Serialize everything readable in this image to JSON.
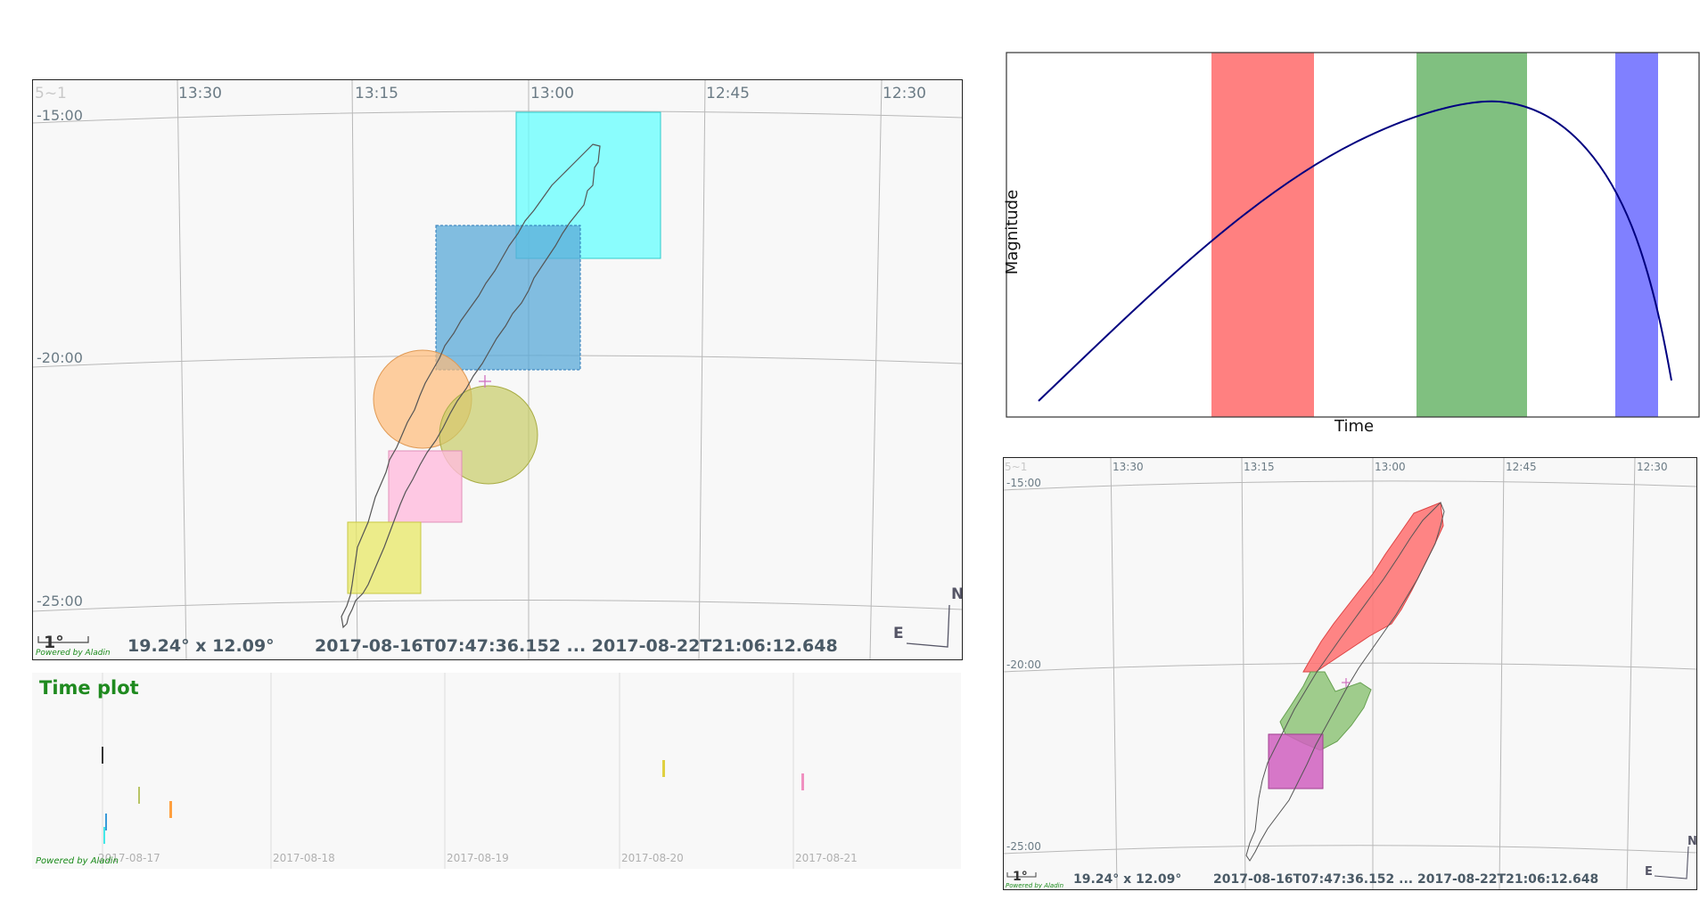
{
  "main_view": {
    "ra_ticks": [
      "5~1",
      "13:30",
      "13:15",
      "13:00",
      "12:45",
      "12:30"
    ],
    "dec_ticks": [
      "-15:00",
      "-20:00",
      "-25:00"
    ],
    "scale_label": "1°",
    "fov_text": "19.24° x 12.09°",
    "time_range": "2017-08-16T07:47:36.152 ... 2017-08-22T21:06:12.648",
    "compass_n": "N",
    "compass_e": "E",
    "powered_by": "Powered by Aladin",
    "footprints": [
      {
        "kind": "square",
        "color": "#66ffff"
      },
      {
        "kind": "square",
        "color": "#5aa9d8"
      },
      {
        "kind": "circle",
        "color": "#ffbb77"
      },
      {
        "kind": "circle",
        "color": "#c8cc66"
      },
      {
        "kind": "square",
        "color": "#ffbbdd"
      },
      {
        "kind": "square",
        "color": "#e8e866"
      }
    ]
  },
  "time_plot": {
    "title": "Time plot",
    "dates": [
      "2017-08-17",
      "2017-08-18",
      "2017-08-19",
      "2017-08-20",
      "2017-08-21"
    ],
    "powered_by": "Powered by Aladin",
    "events": [
      {
        "color": "#333333"
      },
      {
        "color": "#b8c466"
      },
      {
        "color": "#ffa040"
      },
      {
        "color": "#3a9ad8"
      },
      {
        "color": "#44e8e8"
      },
      {
        "color": "#e0d040"
      },
      {
        "color": "#f090c0"
      }
    ]
  },
  "light_curve": {
    "xlabel": "Time",
    "ylabel": "Magnitude",
    "curve_color": "#000080",
    "bands": [
      {
        "name": "red",
        "color": "#ff8080"
      },
      {
        "name": "green",
        "color": "#80c080"
      },
      {
        "name": "blue",
        "color": "#8080ff"
      }
    ]
  },
  "sub_view": {
    "ra_ticks": [
      "5~1",
      "13:30",
      "13:15",
      "13:00",
      "12:45",
      "12:30"
    ],
    "dec_ticks": [
      "-15:00",
      "-20:00",
      "-25:00"
    ],
    "scale_label": "1°",
    "fov_text": "19.24° x 12.09°",
    "time_range": "2017-08-16T07:47:36.152 ... 2017-08-22T21:06:12.648",
    "compass_n": "N",
    "compass_e": "E",
    "powered_by": "Powered by Aladin"
  }
}
